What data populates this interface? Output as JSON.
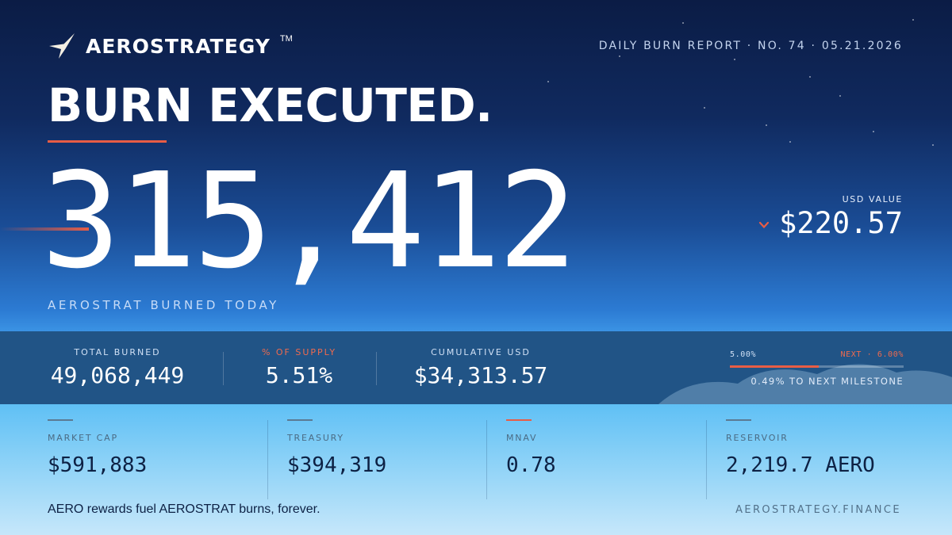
{
  "brand": {
    "name": "AEROSTRATEGY",
    "tm": "TM"
  },
  "report": {
    "label": "DAILY BURN REPORT · NO. 74 · 05.21.2026"
  },
  "headline": "BURN EXECUTED.",
  "burn": {
    "amount": "315,412",
    "label": "AEROSTRAT BURNED TODAY"
  },
  "usd": {
    "label": "USD VALUE",
    "value": "$220.57",
    "trend_icon": "chevron-down-icon"
  },
  "band_stats": [
    {
      "label": "TOTAL BURNED",
      "value": "49,068,449"
    },
    {
      "label": "% OF SUPPLY",
      "value": "5.51%"
    },
    {
      "label": "CUMULATIVE USD",
      "value": "$34,313.57"
    }
  ],
  "milestone": {
    "current": "5.00%",
    "next": "NEXT · 6.00%",
    "fill_fraction": 0.51,
    "caption": "0.49% TO NEXT MILESTONE"
  },
  "metrics": [
    {
      "label": "MARKET CAP",
      "value": "$591,883"
    },
    {
      "label": "TREASURY",
      "value": "$394,319"
    },
    {
      "label": "MNAV",
      "value": "0.78"
    },
    {
      "label": "RESERVOIR",
      "value": "2,219.7 AERO"
    }
  ],
  "footer": {
    "tagline": "AERO rewards fuel AEROSTRAT burns, forever.",
    "site": "AEROSTRATEGY.FINANCE"
  },
  "colors": {
    "accent": "#e85d45",
    "navy": "#0b1c45",
    "sky": "#5fc0f5",
    "text_dark": "#0d2144"
  }
}
